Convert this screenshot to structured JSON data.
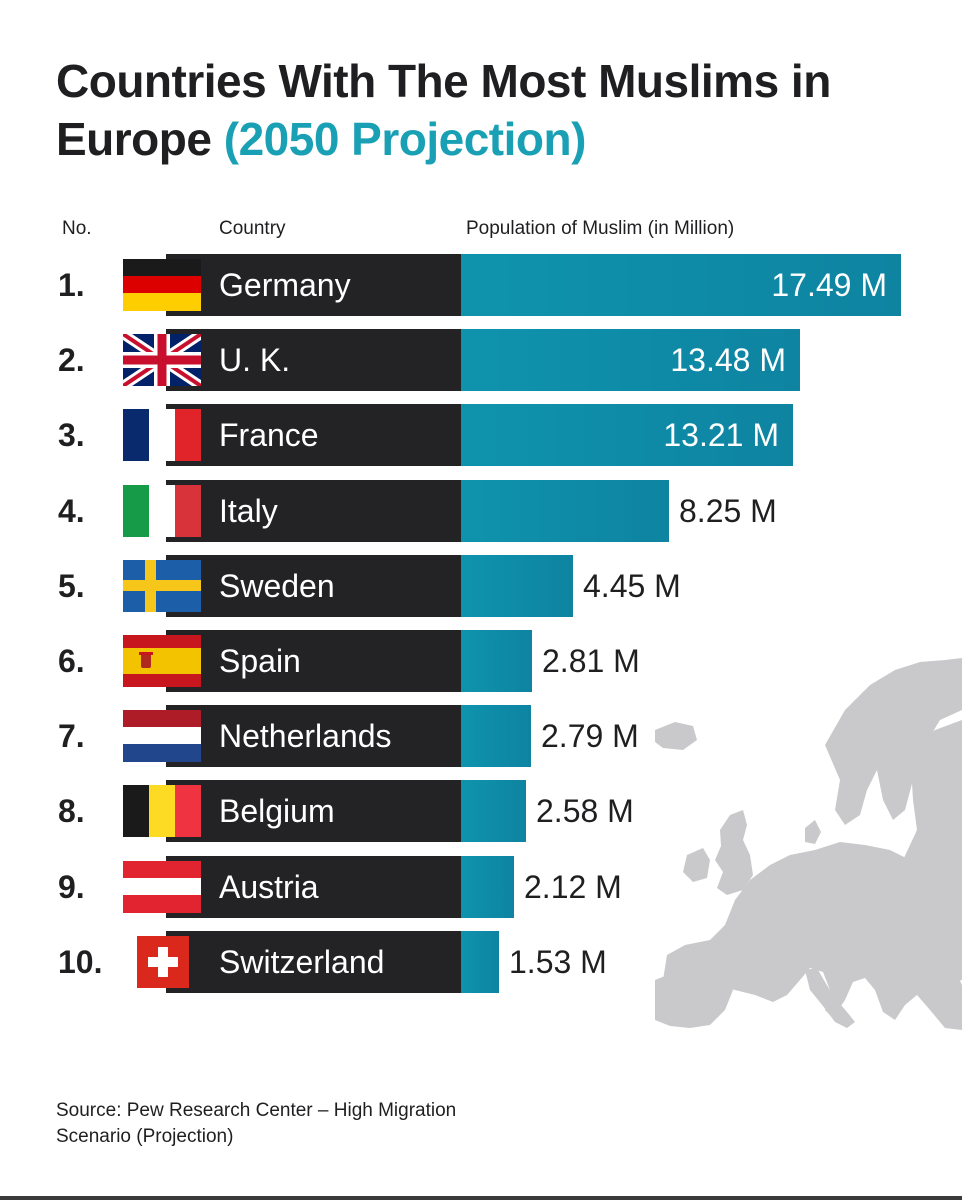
{
  "title": {
    "main": "Countries With The Most Muslims in Europe",
    "accent": "(2050 Projection)"
  },
  "headers": {
    "no": "No.",
    "country": "Country",
    "population": "Population of Muslim (in Million)"
  },
  "source": "Source: Pew Research Center – High Migration Scenario (Projection)",
  "colors": {
    "accent": "#1aa0b4",
    "bar": "#0f93ad",
    "name_bar": "#232225",
    "map": "#c9c9cb"
  },
  "chart_data": {
    "type": "bar",
    "orientation": "horizontal",
    "title": "Countries With The Most Muslims in Europe (2050 Projection)",
    "xlabel": "Population of Muslim (in Million)",
    "unit": "M",
    "categories": [
      "Germany",
      "U. K.",
      "France",
      "Italy",
      "Sweden",
      "Spain",
      "Netherlands",
      "Belgium",
      "Austria",
      "Switzerland"
    ],
    "values": [
      17.49,
      13.48,
      13.21,
      8.25,
      4.45,
      2.81,
      2.79,
      2.58,
      2.12,
      1.53
    ],
    "value_labels": [
      "17.49 M",
      "13.48 M",
      "13.21 M",
      "8.25 M",
      "4.45 M",
      "2.81 M",
      "2.79 M",
      "2.58 M",
      "2.12 M",
      "1.53 M"
    ],
    "ranks": [
      "1.",
      "2.",
      "3.",
      "4.",
      "5.",
      "6.",
      "7.",
      "8.",
      "9.",
      "10."
    ],
    "flags": [
      "germany-flag-icon",
      "uk-flag-icon",
      "france-flag-icon",
      "italy-flag-icon",
      "sweden-flag-icon",
      "spain-flag-icon",
      "netherlands-flag-icon",
      "belgium-flag-icon",
      "austria-flag-icon",
      "switzerland-flag-icon"
    ],
    "grid": false,
    "legend": "none"
  }
}
